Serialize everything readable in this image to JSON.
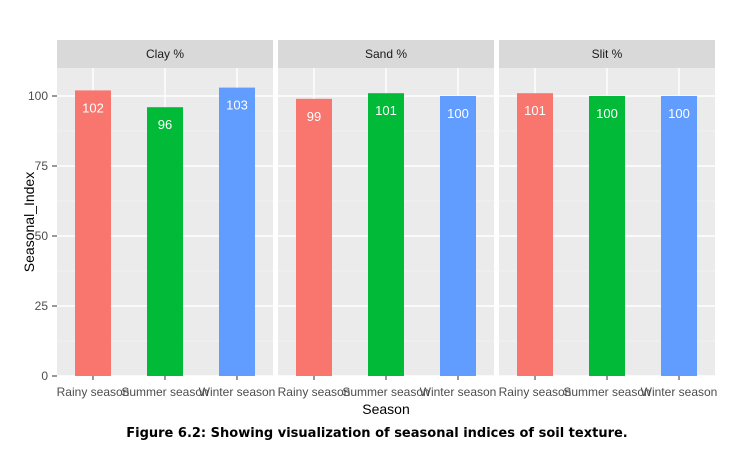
{
  "chart_data": {
    "type": "bar",
    "ylabel": "Seasonal_Index",
    "xlabel": "Season",
    "ylim": [
      0,
      110
    ],
    "yticks": [
      0,
      25,
      50,
      75,
      100
    ],
    "categories": [
      "Rainy season",
      "Summer season",
      "Winter season"
    ],
    "category_colors": [
      "#F8766D",
      "#00BA38",
      "#619CFF"
    ],
    "panel_background": "#EBEBEB",
    "strip_background": "#D9D9D9",
    "grid": true,
    "panels": [
      {
        "title": "Clay %",
        "values": [
          102,
          96,
          103
        ]
      },
      {
        "title": "Sand %",
        "values": [
          99,
          101,
          100
        ]
      },
      {
        "title": "Slit %",
        "values": [
          101,
          100,
          100
        ]
      }
    ]
  },
  "caption": "Figure 6.2: Showing visualization of seasonal indices of soil texture."
}
